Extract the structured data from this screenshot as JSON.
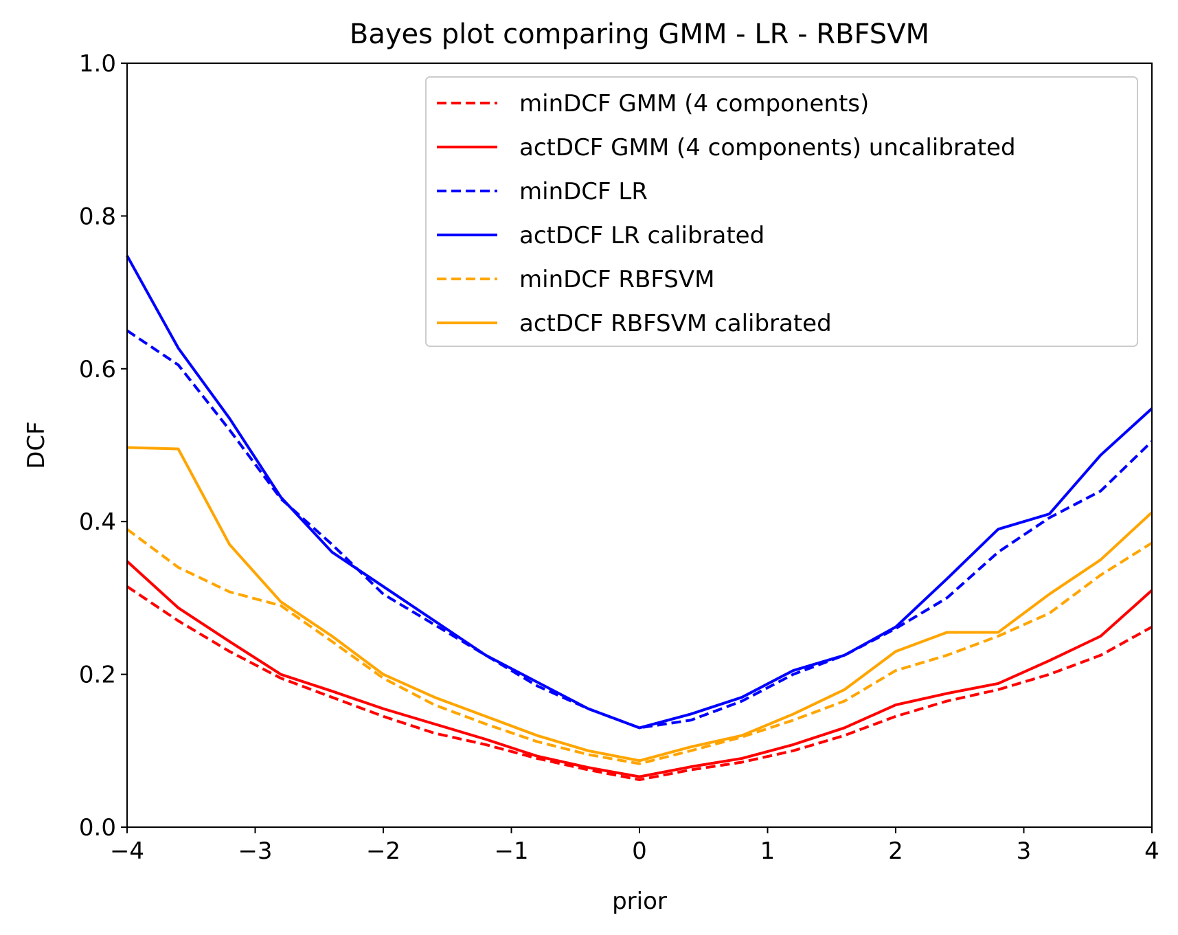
{
  "chart_data": {
    "type": "line",
    "title": "Bayes plot comparing GMM - LR - RBFSVM",
    "xlabel": "prior",
    "ylabel": "DCF",
    "xlim": [
      -4,
      4
    ],
    "ylim": [
      0,
      1
    ],
    "xticks": [
      "−4",
      "−3",
      "−2",
      "−1",
      "0",
      "1",
      "2",
      "3",
      "4"
    ],
    "xtick_values": [
      -4,
      -3,
      -2,
      -1,
      0,
      1,
      2,
      3,
      4
    ],
    "yticks": [
      "0.0",
      "0.2",
      "0.4",
      "0.6",
      "0.8",
      "1.0"
    ],
    "ytick_values": [
      0,
      0.2,
      0.4,
      0.6,
      0.8,
      1.0
    ],
    "grid": false,
    "legend_position": "upper-right",
    "x": [
      -4,
      -3.6,
      -3.2,
      -2.8,
      -2.4,
      -2,
      -1.6,
      -1.2,
      -0.8,
      -0.4,
      0,
      0.4,
      0.8,
      1.2,
      1.6,
      2,
      2.4,
      2.8,
      3.2,
      3.6,
      4
    ],
    "series": [
      {
        "name": "minDCF GMM (4 components)",
        "color": "#ff0000",
        "style": "dashed",
        "values": [
          0.315,
          0.27,
          0.23,
          0.195,
          0.17,
          0.145,
          0.123,
          0.108,
          0.09,
          0.075,
          0.062,
          0.075,
          0.085,
          0.1,
          0.12,
          0.145,
          0.165,
          0.18,
          0.2,
          0.225,
          0.262
        ]
      },
      {
        "name": "actDCF GMM (4 components) uncalibrated",
        "color": "#ff0000",
        "style": "solid",
        "values": [
          0.348,
          0.287,
          0.243,
          0.2,
          0.178,
          0.155,
          0.135,
          0.115,
          0.093,
          0.078,
          0.066,
          0.079,
          0.09,
          0.108,
          0.13,
          0.16,
          0.175,
          0.188,
          0.218,
          0.25,
          0.31
        ]
      },
      {
        "name": "minDCF LR",
        "color": "#0000ff",
        "style": "dashed",
        "values": [
          0.65,
          0.605,
          0.52,
          0.43,
          0.37,
          0.305,
          0.265,
          0.225,
          0.185,
          0.155,
          0.13,
          0.14,
          0.165,
          0.2,
          0.225,
          0.26,
          0.3,
          0.36,
          0.405,
          0.44,
          0.505
        ]
      },
      {
        "name": "actDCF LR calibrated",
        "color": "#0000ff",
        "style": "solid",
        "values": [
          0.748,
          0.627,
          0.535,
          0.432,
          0.36,
          0.315,
          0.27,
          0.225,
          0.19,
          0.155,
          0.13,
          0.148,
          0.17,
          0.205,
          0.225,
          0.262,
          0.325,
          0.39,
          0.41,
          0.487,
          0.548
        ]
      },
      {
        "name": "minDCF RBFSVM",
        "color": "#ffa500",
        "style": "dashed",
        "values": [
          0.39,
          0.34,
          0.308,
          0.29,
          0.243,
          0.195,
          0.16,
          0.135,
          0.112,
          0.095,
          0.083,
          0.1,
          0.118,
          0.14,
          0.165,
          0.205,
          0.225,
          0.25,
          0.28,
          0.33,
          0.372
        ]
      },
      {
        "name": "actDCF RBFSVM calibrated",
        "color": "#ffa500",
        "style": "solid",
        "values": [
          0.497,
          0.495,
          0.37,
          0.295,
          0.25,
          0.2,
          0.17,
          0.145,
          0.12,
          0.1,
          0.087,
          0.105,
          0.12,
          0.148,
          0.18,
          0.23,
          0.255,
          0.255,
          0.305,
          0.35,
          0.412
        ]
      }
    ]
  }
}
